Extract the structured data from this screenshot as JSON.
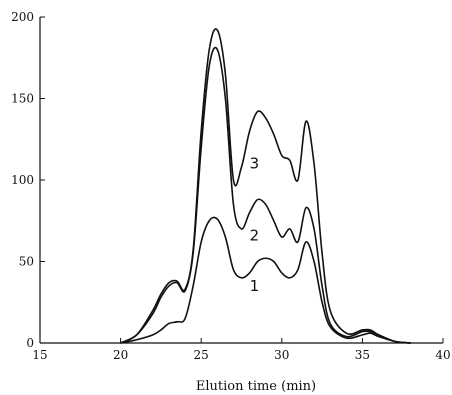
{
  "chart_data": {
    "type": "line",
    "title": "",
    "xlabel": "Elution time (min)",
    "ylabel": "",
    "xlim": [
      15,
      40
    ],
    "ylim": [
      0,
      200
    ],
    "xticks": [
      15,
      20,
      25,
      30,
      35,
      40
    ],
    "yticks": [
      0,
      50,
      100,
      150,
      200
    ],
    "grid": false,
    "series": [
      {
        "name": "1",
        "x": [
          20,
          21,
          22,
          22.5,
          23,
          23.5,
          24,
          24.5,
          25,
          25.5,
          26,
          26.5,
          27,
          27.5,
          28,
          28.5,
          29,
          29.5,
          30,
          30.5,
          31,
          31.5,
          32,
          32.5,
          33,
          34,
          35,
          35.5,
          36,
          37,
          38
        ],
        "y": [
          0,
          2,
          5,
          8,
          12,
          13,
          15,
          35,
          62,
          75,
          76,
          65,
          45,
          40,
          43,
          50,
          52,
          50,
          43,
          40,
          45,
          62,
          50,
          25,
          10,
          3,
          5,
          6,
          4,
          1,
          0
        ]
      },
      {
        "name": "2",
        "x": [
          20,
          21,
          22,
          22.5,
          23,
          23.5,
          24,
          24.5,
          25,
          25.5,
          26,
          26.5,
          27,
          27.5,
          28,
          28.5,
          29,
          29.5,
          30,
          30.5,
          31,
          31.5,
          32,
          32.5,
          33,
          34,
          35,
          35.5,
          36,
          37,
          38
        ],
        "y": [
          0,
          5,
          18,
          28,
          35,
          37,
          32,
          55,
          120,
          170,
          180,
          150,
          85,
          70,
          80,
          88,
          85,
          75,
          65,
          70,
          62,
          83,
          70,
          35,
          12,
          4,
          7,
          7,
          5,
          1,
          0
        ]
      },
      {
        "name": "3",
        "x": [
          20,
          21,
          22,
          22.5,
          23,
          23.5,
          24,
          24.5,
          25,
          25.5,
          26,
          26.5,
          27,
          27.5,
          28,
          28.5,
          29,
          29.5,
          30,
          30.5,
          31,
          31.5,
          32,
          32.5,
          33,
          34,
          35,
          35.5,
          36,
          37,
          38
        ],
        "y": [
          0,
          5,
          20,
          30,
          37,
          38,
          33,
          57,
          130,
          180,
          192,
          165,
          100,
          108,
          130,
          142,
          138,
          128,
          115,
          112,
          100,
          136,
          110,
          55,
          20,
          6,
          8,
          8,
          5,
          1,
          0
        ]
      }
    ],
    "annotations": [
      {
        "text": "1",
        "x": 28.3,
        "y": 32
      },
      {
        "text": "2",
        "x": 28.3,
        "y": 63
      },
      {
        "text": "3",
        "x": 28.3,
        "y": 107
      }
    ]
  }
}
